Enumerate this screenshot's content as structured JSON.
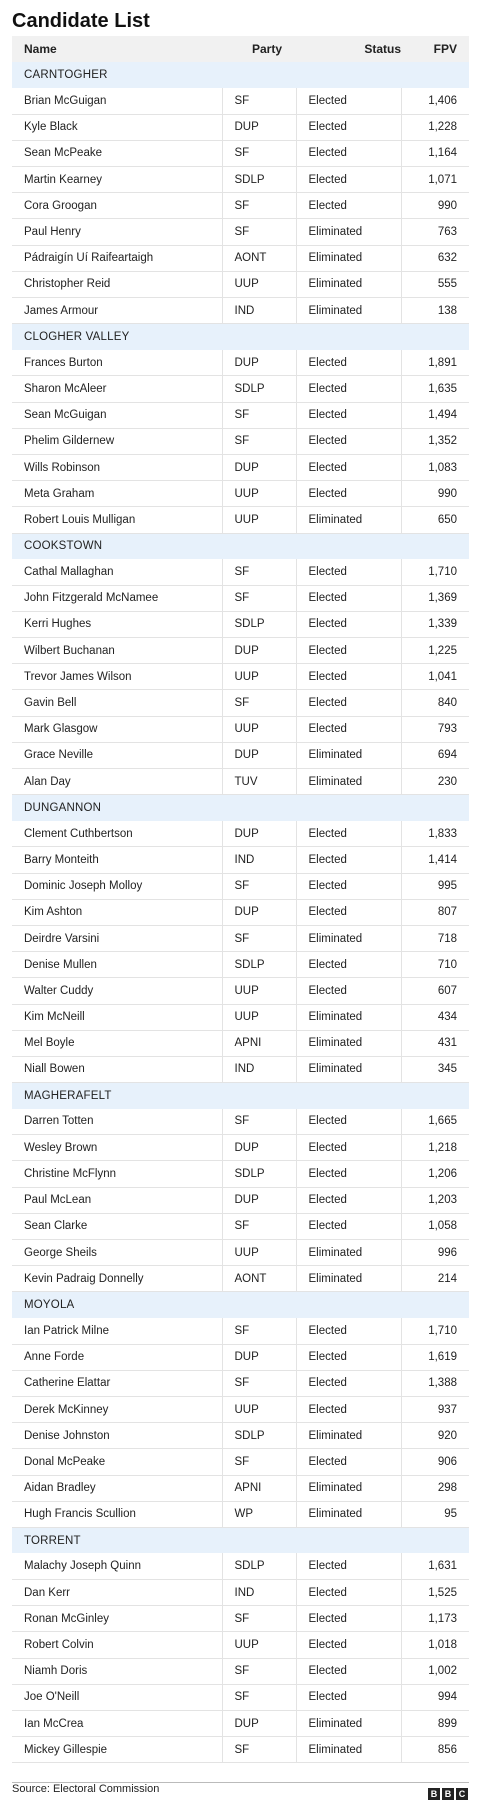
{
  "title": "Candidate List",
  "headers": {
    "name": "Name",
    "party": "Party",
    "status": "Status",
    "fpv": "FPV"
  },
  "groups": [
    {
      "name": "CARNTOGHER",
      "rows": [
        [
          "Brian McGuigan",
          "SF",
          "Elected",
          "1,406"
        ],
        [
          "Kyle Black",
          "DUP",
          "Elected",
          "1,228"
        ],
        [
          "Sean McPeake",
          "SF",
          "Elected",
          "1,164"
        ],
        [
          "Martin Kearney",
          "SDLP",
          "Elected",
          "1,071"
        ],
        [
          "Cora Groogan",
          "SF",
          "Elected",
          "990"
        ],
        [
          "Paul Henry",
          "SF",
          "Eliminated",
          "763"
        ],
        [
          "Pádraigín Uí Raifeartaigh",
          "AONT",
          "Eliminated",
          "632"
        ],
        [
          "Christopher Reid",
          "UUP",
          "Eliminated",
          "555"
        ],
        [
          "James Armour",
          "IND",
          "Eliminated",
          "138"
        ]
      ]
    },
    {
      "name": "CLOGHER VALLEY",
      "rows": [
        [
          "Frances Burton",
          "DUP",
          "Elected",
          "1,891"
        ],
        [
          "Sharon McAleer",
          "SDLP",
          "Elected",
          "1,635"
        ],
        [
          "Sean McGuigan",
          "SF",
          "Elected",
          "1,494"
        ],
        [
          "Phelim Gildernew",
          "SF",
          "Elected",
          "1,352"
        ],
        [
          "Wills Robinson",
          "DUP",
          "Elected",
          "1,083"
        ],
        [
          "Meta Graham",
          "UUP",
          "Elected",
          "990"
        ],
        [
          "Robert Louis Mulligan",
          "UUP",
          "Eliminated",
          "650"
        ]
      ]
    },
    {
      "name": "COOKSTOWN",
      "rows": [
        [
          "Cathal Mallaghan",
          "SF",
          "Elected",
          "1,710"
        ],
        [
          "John Fitzgerald McNamee",
          "SF",
          "Elected",
          "1,369"
        ],
        [
          "Kerri Hughes",
          "SDLP",
          "Elected",
          "1,339"
        ],
        [
          "Wilbert Buchanan",
          "DUP",
          "Elected",
          "1,225"
        ],
        [
          "Trevor James Wilson",
          "UUP",
          "Elected",
          "1,041"
        ],
        [
          "Gavin Bell",
          "SF",
          "Elected",
          "840"
        ],
        [
          "Mark Glasgow",
          "UUP",
          "Elected",
          "793"
        ],
        [
          "Grace Neville",
          "DUP",
          "Eliminated",
          "694"
        ],
        [
          "Alan Day",
          "TUV",
          "Eliminated",
          "230"
        ]
      ]
    },
    {
      "name": "DUNGANNON",
      "rows": [
        [
          "Clement Cuthbertson",
          "DUP",
          "Elected",
          "1,833"
        ],
        [
          "Barry Monteith",
          "IND",
          "Elected",
          "1,414"
        ],
        [
          "Dominic Joseph Molloy",
          "SF",
          "Elected",
          "995"
        ],
        [
          "Kim Ashton",
          "DUP",
          "Elected",
          "807"
        ],
        [
          "Deirdre Varsini",
          "SF",
          "Eliminated",
          "718"
        ],
        [
          "Denise Mullen",
          "SDLP",
          "Elected",
          "710"
        ],
        [
          "Walter Cuddy",
          "UUP",
          "Elected",
          "607"
        ],
        [
          "Kim McNeill",
          "UUP",
          "Eliminated",
          "434"
        ],
        [
          "Mel Boyle",
          "APNI",
          "Eliminated",
          "431"
        ],
        [
          "Niall Bowen",
          "IND",
          "Eliminated",
          "345"
        ]
      ]
    },
    {
      "name": "MAGHERAFELT",
      "rows": [
        [
          "Darren Totten",
          "SF",
          "Elected",
          "1,665"
        ],
        [
          "Wesley Brown",
          "DUP",
          "Elected",
          "1,218"
        ],
        [
          "Christine McFlynn",
          "SDLP",
          "Elected",
          "1,206"
        ],
        [
          "Paul McLean",
          "DUP",
          "Elected",
          "1,203"
        ],
        [
          "Sean Clarke",
          "SF",
          "Elected",
          "1,058"
        ],
        [
          "George Sheils",
          "UUP",
          "Eliminated",
          "996"
        ],
        [
          "Kevin Padraig Donnelly",
          "AONT",
          "Eliminated",
          "214"
        ]
      ]
    },
    {
      "name": "MOYOLA",
      "rows": [
        [
          "Ian Patrick Milne",
          "SF",
          "Elected",
          "1,710"
        ],
        [
          "Anne Forde",
          "DUP",
          "Elected",
          "1,619"
        ],
        [
          "Catherine Elattar",
          "SF",
          "Elected",
          "1,388"
        ],
        [
          "Derek McKinney",
          "UUP",
          "Elected",
          "937"
        ],
        [
          "Denise Johnston",
          "SDLP",
          "Eliminated",
          "920"
        ],
        [
          "Donal McPeake",
          "SF",
          "Elected",
          "906"
        ],
        [
          "Aidan Bradley",
          "APNI",
          "Eliminated",
          "298"
        ],
        [
          "Hugh Francis Scullion",
          "WP",
          "Eliminated",
          "95"
        ]
      ]
    },
    {
      "name": "TORRENT",
      "rows": [
        [
          "Malachy Joseph Quinn",
          "SDLP",
          "Elected",
          "1,631"
        ],
        [
          "Dan Kerr",
          "IND",
          "Elected",
          "1,525"
        ],
        [
          "Ronan McGinley",
          "SF",
          "Elected",
          "1,173"
        ],
        [
          "Robert Colvin",
          "UUP",
          "Elected",
          "1,018"
        ],
        [
          "Niamh Doris",
          "SF",
          "Elected",
          "1,002"
        ],
        [
          "Joe O'Neill",
          "SF",
          "Elected",
          "994"
        ],
        [
          "Ian McCrea",
          "DUP",
          "Eliminated",
          "899"
        ],
        [
          "Mickey Gillespie",
          "SF",
          "Eliminated",
          "856"
        ]
      ]
    }
  ],
  "source": "Source: Electoral Commission",
  "logo": [
    "B",
    "B",
    "C"
  ]
}
